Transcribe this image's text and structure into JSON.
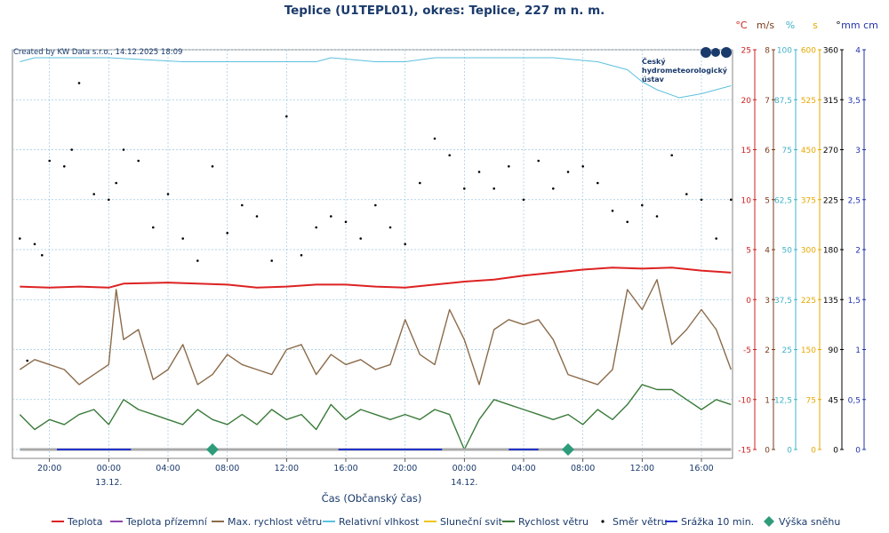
{
  "title": "Teplice (U1TEPL01), okres: Teplice, 227 m n. m.",
  "credit": "Created by KW Data s.r.o., 14.12.2025 18:09",
  "logo": {
    "lines": [
      "Český",
      "hydrometeorologický",
      "ústav"
    ]
  },
  "x_axis": {
    "label": "Čas (Občanský čas)",
    "ticks": [
      "20:00",
      "00:00",
      "04:00",
      "08:00",
      "12:00",
      "16:00",
      "20:00",
      "00:00",
      "04:00",
      "08:00",
      "12:00",
      "16:00"
    ],
    "dates": [
      {
        "tick": 1,
        "label": "13.12."
      },
      {
        "tick": 7,
        "label": "14.12."
      }
    ]
  },
  "y_axes": [
    {
      "unit": "°C",
      "color": "#cc2222",
      "ticks": [
        "25",
        "20",
        "15",
        "10",
        "5",
        "0",
        "-5",
        "-10",
        "-15"
      ]
    },
    {
      "unit": "m/s",
      "color": "#7a3b1c",
      "ticks": [
        "8",
        "7",
        "6",
        "5",
        "4",
        "3",
        "2",
        "1",
        "0"
      ]
    },
    {
      "unit": "%",
      "color": "#3fb3c8",
      "ticks": [
        "100",
        "87,5",
        "75",
        "62,5",
        "50",
        "37,5",
        "25",
        "12,5",
        "0"
      ]
    },
    {
      "unit": "s",
      "color": "#e6a800",
      "ticks": [
        "600",
        "525",
        "450",
        "375",
        "300",
        "225",
        "150",
        "75",
        "0"
      ]
    },
    {
      "unit": "°",
      "color": "#000000",
      "ticks": [
        "360",
        "315",
        "270",
        "225",
        "180",
        "135",
        "90",
        "45",
        "0"
      ]
    },
    {
      "unit": "mm cm",
      "color": "#2233aa",
      "ticks": [
        "4",
        "3,5",
        "3",
        "2,5",
        "2",
        "1,5",
        "1",
        "0,5",
        "0"
      ]
    }
  ],
  "legend": [
    {
      "label": "Teplota",
      "color": "#dd2222",
      "kind": "line"
    },
    {
      "label": "Teplota přízemní",
      "color": "#8e44ad",
      "kind": "line"
    },
    {
      "label": "Max. rychlost větru",
      "color": "#8b6b4a",
      "kind": "line"
    },
    {
      "label": "Relativní vlhkost",
      "color": "#5bc0de",
      "kind": "line"
    },
    {
      "label": "Sluneční svit",
      "color": "#f0c419",
      "kind": "line"
    },
    {
      "label": "Rychlost větru",
      "color": "#3a7a3a",
      "kind": "line"
    },
    {
      "label": "Směr větru",
      "color": "#000000",
      "kind": "dot"
    },
    {
      "label": "Srážka 10 min.",
      "color": "#2233cc",
      "kind": "line"
    },
    {
      "label": "Výška sněhu",
      "color": "#2e9c7a",
      "kind": "diamond"
    }
  ],
  "chart_data": {
    "type": "line",
    "title": "Teplice (U1TEPL01), okres: Teplice, 227 m n. m.",
    "x_unit": "hours since 13.12. 00:00",
    "x_range": [
      -6.5,
      42.1
    ],
    "series": [
      {
        "name": "Teplota",
        "unit": "°C",
        "x": [
          -6,
          -4,
          -2,
          0,
          1,
          4,
          8,
          10,
          12,
          14,
          16,
          18,
          20,
          22,
          24,
          26,
          28,
          30,
          32,
          34,
          36,
          38,
          40,
          42
        ],
        "y": [
          1.3,
          1.2,
          1.3,
          1.2,
          1.6,
          1.7,
          1.5,
          1.2,
          1.3,
          1.5,
          1.5,
          1.3,
          1.2,
          1.5,
          1.8,
          2.0,
          2.4,
          2.7,
          3.0,
          3.2,
          3.1,
          3.2,
          2.9,
          2.7
        ]
      },
      {
        "name": "Relativní vlhkost",
        "unit": "%",
        "x": [
          -6,
          -5,
          0,
          5,
          10,
          14,
          15,
          18,
          20,
          22,
          24,
          27,
          30,
          33,
          35,
          36,
          37,
          38.5,
          40,
          42
        ],
        "y": [
          97,
          98,
          98,
          97,
          97,
          97,
          98,
          97,
          97,
          98,
          98,
          98,
          98,
          97,
          95,
          92,
          90,
          88,
          89,
          91
        ]
      },
      {
        "name": "Max. rychlost větru",
        "unit": "m/s",
        "x": [
          -6,
          -5,
          -4,
          -3,
          -2,
          -1,
          0,
          0.5,
          1,
          2,
          3,
          4,
          5,
          6,
          7,
          8,
          9,
          10,
          11,
          12,
          13,
          14,
          15,
          16,
          17,
          18,
          19,
          20,
          21,
          22,
          23,
          24,
          25,
          26,
          27,
          28,
          29,
          30,
          31,
          32,
          33,
          34,
          35,
          36,
          37,
          38,
          39,
          40,
          41,
          42
        ],
        "y": [
          1.6,
          1.8,
          1.7,
          1.6,
          1.3,
          1.5,
          1.7,
          3.2,
          2.2,
          2.4,
          1.4,
          1.6,
          2.1,
          1.3,
          1.5,
          1.9,
          1.7,
          1.6,
          1.5,
          2.0,
          2.1,
          1.5,
          1.9,
          1.7,
          1.8,
          1.6,
          1.7,
          2.6,
          1.9,
          1.7,
          2.8,
          2.2,
          1.3,
          2.4,
          2.6,
          2.5,
          2.6,
          2.2,
          1.5,
          1.4,
          1.3,
          1.6,
          3.2,
          2.8,
          3.4,
          2.1,
          2.4,
          2.8,
          2.4,
          1.6
        ]
      },
      {
        "name": "Rychlost větru",
        "unit": "m/s",
        "x": [
          -6,
          -5,
          -4,
          -3,
          -2,
          -1,
          0,
          1,
          2,
          3,
          4,
          5,
          6,
          7,
          8,
          9,
          10,
          11,
          12,
          13,
          14,
          15,
          16,
          17,
          18,
          19,
          20,
          21,
          22,
          23,
          24,
          25,
          26,
          27,
          28,
          29,
          30,
          31,
          32,
          33,
          34,
          35,
          36,
          37,
          38,
          39,
          40,
          41,
          42
        ],
        "y": [
          0.7,
          0.4,
          0.6,
          0.5,
          0.7,
          0.8,
          0.5,
          1.0,
          0.8,
          0.7,
          0.6,
          0.5,
          0.8,
          0.6,
          0.5,
          0.7,
          0.5,
          0.8,
          0.6,
          0.7,
          0.4,
          0.9,
          0.6,
          0.8,
          0.7,
          0.6,
          0.7,
          0.6,
          0.8,
          0.7,
          0.0,
          0.6,
          1.0,
          0.9,
          0.8,
          0.7,
          0.6,
          0.7,
          0.5,
          0.8,
          0.6,
          0.9,
          1.3,
          1.2,
          1.2,
          1.0,
          0.8,
          1.0,
          0.9
        ]
      },
      {
        "name": "Směr větru",
        "unit": "°",
        "x": [
          -6,
          -5.5,
          -5,
          -4.5,
          -4,
          -3,
          -2.5,
          -2,
          -1,
          0,
          0.5,
          1,
          2,
          3,
          4,
          5,
          6,
          7,
          8,
          9,
          10,
          11,
          12,
          13,
          14,
          15,
          16,
          17,
          18,
          19,
          20,
          21,
          22,
          23,
          24,
          25,
          26,
          27,
          28,
          29,
          30,
          31,
          32,
          33,
          34,
          35,
          36,
          37,
          38,
          39,
          40,
          41,
          42
        ],
        "y": [
          190,
          80,
          185,
          175,
          260,
          255,
          270,
          330,
          230,
          225,
          240,
          270,
          260,
          200,
          230,
          190,
          170,
          255,
          195,
          220,
          210,
          170,
          300,
          175,
          200,
          210,
          205,
          190,
          220,
          200,
          185,
          240,
          280,
          265,
          235,
          250,
          235,
          255,
          225,
          260,
          235,
          250,
          255,
          240,
          215,
          205,
          220,
          210,
          265,
          230,
          225,
          190,
          225
        ]
      },
      {
        "name": "Srážka 10 min.",
        "unit": "mm",
        "segments": [
          [
            -3.5,
            1.5
          ],
          [
            15.5,
            22.5
          ],
          [
            27,
            29
          ]
        ],
        "y": 0.0
      },
      {
        "name": "Výška sněhu",
        "unit": "cm",
        "x": [
          7.0,
          31.0
        ],
        "y": [
          0.0,
          0.0
        ]
      }
    ]
  }
}
